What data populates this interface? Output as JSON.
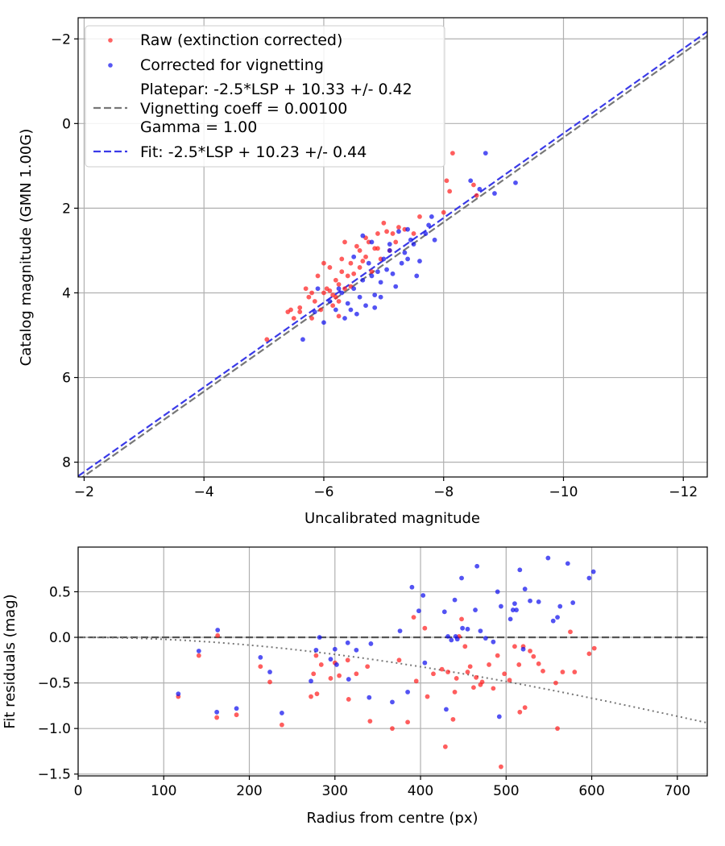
{
  "colors": {
    "raw": "#ff2020",
    "corrected": "#1010ee",
    "platepar": "#555555",
    "fit": "#2828e6"
  },
  "chart_data": [
    {
      "type": "scatter",
      "xlabel": "Uncalibrated magnitude",
      "ylabel": "Catalog magnitude (GMN 1.00G)",
      "xlim": [
        -1.9,
        -12.4
      ],
      "ylim": [
        8.35,
        -2.5
      ],
      "xticks": [
        -2,
        -4,
        -6,
        -8,
        -10,
        -12
      ],
      "xtick_labels": [
        "−2",
        "−4",
        "−6",
        "−8",
        "−10",
        "−12"
      ],
      "yticks": [
        -2,
        0,
        2,
        4,
        6,
        8
      ],
      "ytick_labels": [
        "−2",
        "0",
        "2",
        "4",
        "6",
        "8"
      ],
      "grid": true,
      "legend": {
        "position": "top-left",
        "raw": "Raw (extinction corrected)",
        "corrected": "Corrected for vignetting",
        "platepar_lines": [
          "Platepar: -2.5*LSP + 10.33 +/- 0.42",
          "Vignetting coeff = 0.00100",
          "Gamma = 1.00"
        ],
        "fit": "Fit: -2.5*LSP + 10.23 +/- 0.44"
      },
      "lines": [
        {
          "name": "platepar",
          "offset": 10.33,
          "color": "#777777"
        },
        {
          "name": "fit",
          "offset": 10.23,
          "color": "#3a3ae8"
        }
      ],
      "series": [
        {
          "name": "Raw (extinction corrected)",
          "color": "#ff2020",
          "points": [
            [
              -5.05,
              5.1
            ],
            [
              -5.4,
              4.45
            ],
            [
              -5.45,
              4.4
            ],
            [
              -5.5,
              4.6
            ],
            [
              -5.6,
              4.35
            ],
            [
              -5.6,
              4.45
            ],
            [
              -5.7,
              3.9
            ],
            [
              -5.75,
              4.1
            ],
            [
              -5.8,
              4.0
            ],
            [
              -5.85,
              4.2
            ],
            [
              -5.9,
              3.6
            ],
            [
              -5.95,
              4.4
            ],
            [
              -6.0,
              3.3
            ],
            [
              -6.0,
              4.0
            ],
            [
              -6.05,
              3.9
            ],
            [
              -6.1,
              3.95
            ],
            [
              -6.1,
              3.4
            ],
            [
              -6.15,
              4.05
            ],
            [
              -6.2,
              3.7
            ],
            [
              -6.2,
              4.1
            ],
            [
              -6.25,
              3.8
            ],
            [
              -6.25,
              4.2
            ],
            [
              -6.3,
              3.2
            ],
            [
              -6.3,
              3.5
            ],
            [
              -6.35,
              3.9
            ],
            [
              -6.35,
              2.8
            ],
            [
              -6.4,
              3.6
            ],
            [
              -6.45,
              3.85
            ],
            [
              -6.45,
              3.3
            ],
            [
              -6.5,
              3.55
            ],
            [
              -6.55,
              2.9
            ],
            [
              -6.6,
              3.4
            ],
            [
              -6.6,
              3.0
            ],
            [
              -6.65,
              3.25
            ],
            [
              -6.7,
              2.7
            ],
            [
              -6.7,
              3.15
            ],
            [
              -6.75,
              2.8
            ],
            [
              -6.8,
              3.5
            ],
            [
              -6.85,
              2.95
            ],
            [
              -6.9,
              2.6
            ],
            [
              -6.95,
              3.2
            ],
            [
              -7.0,
              2.35
            ],
            [
              -7.05,
              2.55
            ],
            [
              -7.1,
              3.0
            ],
            [
              -7.15,
              2.6
            ],
            [
              -7.2,
              2.8
            ],
            [
              -7.25,
              2.45
            ],
            [
              -7.35,
              2.5
            ],
            [
              -7.5,
              2.6
            ],
            [
              -7.6,
              2.2
            ],
            [
              -8.0,
              2.1
            ],
            [
              -8.15,
              0.7
            ],
            [
              -8.05,
              1.35
            ],
            [
              -8.1,
              1.6
            ],
            [
              -8.5,
              1.45
            ],
            [
              -8.55,
              1.7
            ],
            [
              -6.15,
              4.3
            ],
            [
              -6.25,
              4.55
            ],
            [
              -5.8,
              4.6
            ],
            [
              -6.9,
              2.95
            ]
          ]
        },
        {
          "name": "Corrected for vignetting",
          "color": "#1010ee",
          "points": [
            [
              -5.65,
              5.1
            ],
            [
              -5.85,
              4.45
            ],
            [
              -5.9,
              3.9
            ],
            [
              -6.0,
              4.7
            ],
            [
              -6.1,
              4.2
            ],
            [
              -6.2,
              4.4
            ],
            [
              -6.25,
              3.9
            ],
            [
              -6.3,
              4.0
            ],
            [
              -6.35,
              4.6
            ],
            [
              -6.4,
              4.25
            ],
            [
              -6.45,
              4.4
            ],
            [
              -6.5,
              3.9
            ],
            [
              -6.55,
              4.5
            ],
            [
              -6.6,
              4.1
            ],
            [
              -6.65,
              3.7
            ],
            [
              -6.7,
              4.3
            ],
            [
              -6.75,
              3.3
            ],
            [
              -6.8,
              3.6
            ],
            [
              -6.85,
              4.05
            ],
            [
              -6.9,
              3.5
            ],
            [
              -6.95,
              4.1
            ],
            [
              -7.0,
              3.2
            ],
            [
              -7.05,
              3.45
            ],
            [
              -7.1,
              3.0
            ],
            [
              -7.15,
              3.55
            ],
            [
              -7.2,
              3.85
            ],
            [
              -7.25,
              2.55
            ],
            [
              -7.3,
              3.3
            ],
            [
              -7.35,
              3.05
            ],
            [
              -7.4,
              3.2
            ],
            [
              -7.45,
              2.75
            ],
            [
              -7.5,
              2.85
            ],
            [
              -7.55,
              3.6
            ],
            [
              -7.6,
              3.25
            ],
            [
              -7.7,
              2.6
            ],
            [
              -7.75,
              2.4
            ],
            [
              -7.8,
              2.2
            ],
            [
              -7.85,
              2.75
            ],
            [
              -8.45,
              1.35
            ],
            [
              -8.6,
              1.55
            ],
            [
              -8.7,
              0.7
            ],
            [
              -8.85,
              1.65
            ],
            [
              -9.2,
              1.4
            ],
            [
              -6.65,
              2.65
            ],
            [
              -6.8,
              2.8
            ],
            [
              -6.95,
              3.75
            ],
            [
              -7.1,
              2.85
            ],
            [
              -6.5,
              3.15
            ],
            [
              -6.85,
              4.35
            ],
            [
              -7.4,
              2.5
            ]
          ]
        }
      ]
    },
    {
      "type": "scatter",
      "xlabel": "Radius from centre (px)",
      "ylabel": "Fit residuals (mag)",
      "xlim": [
        0,
        735
      ],
      "ylim": [
        -1.52,
        0.99
      ],
      "xticks": [
        0,
        100,
        200,
        300,
        400,
        500,
        600,
        700
      ],
      "xtick_labels": [
        "0",
        "100",
        "200",
        "300",
        "400",
        "500",
        "600",
        "700"
      ],
      "yticks": [
        -1.5,
        -1.0,
        -0.5,
        0.0,
        0.5
      ],
      "ytick_labels": [
        "−1.5",
        "−1.0",
        "−0.5",
        "0.0",
        "0.5"
      ],
      "grid": true,
      "lines": [
        {
          "name": "zero",
          "style": "dashed",
          "color": "#555555"
        },
        {
          "name": "vignetting",
          "style": "dotted",
          "coeff": 0.001,
          "color": "#777777"
        }
      ],
      "series": [
        {
          "name": "Raw (extinction corrected)",
          "color": "#ff2020",
          "points": [
            [
              117,
              -0.65
            ],
            [
              141,
              -0.2
            ],
            [
              162,
              -0.88
            ],
            [
              163,
              0.02
            ],
            [
              185,
              -0.85
            ],
            [
              213,
              -0.32
            ],
            [
              224,
              -0.49
            ],
            [
              238,
              -0.96
            ],
            [
              272,
              -0.65
            ],
            [
              275,
              -0.4
            ],
            [
              278,
              -0.2
            ],
            [
              279,
              -0.62
            ],
            [
              284,
              -0.3
            ],
            [
              295,
              -0.45
            ],
            [
              300,
              -0.28
            ],
            [
              305,
              -0.42
            ],
            [
              315,
              -0.25
            ],
            [
              316,
              -0.68
            ],
            [
              325,
              -0.4
            ],
            [
              338,
              -0.32
            ],
            [
              341,
              -0.92
            ],
            [
              367,
              -1.0
            ],
            [
              375,
              -0.25
            ],
            [
              385,
              -0.93
            ],
            [
              392,
              0.22
            ],
            [
              395,
              -0.48
            ],
            [
              405,
              0.1
            ],
            [
              408,
              -0.65
            ],
            [
              415,
              -0.4
            ],
            [
              425,
              -0.35
            ],
            [
              429,
              -1.2
            ],
            [
              432,
              -0.38
            ],
            [
              438,
              -0.9
            ],
            [
              440,
              -0.6
            ],
            [
              442,
              -0.45
            ],
            [
              445,
              0.01
            ],
            [
              448,
              0.2
            ],
            [
              452,
              -0.1
            ],
            [
              455,
              -0.38
            ],
            [
              458,
              -0.32
            ],
            [
              462,
              -0.55
            ],
            [
              465,
              -0.44
            ],
            [
              470,
              -0.52
            ],
            [
              472,
              -0.49
            ],
            [
              480,
              -0.3
            ],
            [
              485,
              -0.56
            ],
            [
              490,
              -0.2
            ],
            [
              494,
              -1.42
            ],
            [
              498,
              -0.4
            ],
            [
              504,
              -0.47
            ],
            [
              510,
              -0.1
            ],
            [
              515,
              -0.3
            ],
            [
              516,
              -0.82
            ],
            [
              520,
              -0.1
            ],
            [
              522,
              -0.77
            ],
            [
              528,
              -0.15
            ],
            [
              532,
              -0.21
            ],
            [
              538,
              -0.29
            ],
            [
              543,
              -0.37
            ],
            [
              558,
              -0.5
            ],
            [
              560,
              -1.0
            ],
            [
              566,
              -0.38
            ],
            [
              575,
              0.06
            ],
            [
              580,
              -0.38
            ],
            [
              597,
              -0.18
            ],
            [
              603,
              -0.12
            ]
          ]
        },
        {
          "name": "Corrected for vignetting",
          "color": "#1010ee",
          "points": [
            [
              117,
              -0.62
            ],
            [
              141,
              -0.15
            ],
            [
              162,
              -0.82
            ],
            [
              163,
              0.08
            ],
            [
              185,
              -0.78
            ],
            [
              213,
              -0.22
            ],
            [
              224,
              -0.38
            ],
            [
              238,
              -0.83
            ],
            [
              272,
              -0.48
            ],
            [
              278,
              -0.14
            ],
            [
              282,
              0.0
            ],
            [
              295,
              -0.24
            ],
            [
              300,
              -0.13
            ],
            [
              302,
              -0.3
            ],
            [
              315,
              -0.06
            ],
            [
              316,
              -0.46
            ],
            [
              325,
              -0.14
            ],
            [
              340,
              -0.66
            ],
            [
              342,
              -0.07
            ],
            [
              367,
              -0.71
            ],
            [
              376,
              0.07
            ],
            [
              385,
              -0.6
            ],
            [
              390,
              0.55
            ],
            [
              398,
              0.29
            ],
            [
              403,
              0.46
            ],
            [
              405,
              -0.28
            ],
            [
              428,
              0.28
            ],
            [
              430,
              -0.79
            ],
            [
              432,
              0.01
            ],
            [
              436,
              -0.03
            ],
            [
              440,
              0.41
            ],
            [
              441,
              0.01
            ],
            [
              443,
              -0.02
            ],
            [
              448,
              0.65
            ],
            [
              449,
              0.1
            ],
            [
              455,
              0.09
            ],
            [
              464,
              0.3
            ],
            [
              466,
              0.78
            ],
            [
              470,
              0.07
            ],
            [
              476,
              -0.01
            ],
            [
              485,
              -0.05
            ],
            [
              490,
              0.5
            ],
            [
              492,
              -0.87
            ],
            [
              494,
              0.34
            ],
            [
              505,
              0.2
            ],
            [
              508,
              0.3
            ],
            [
              510,
              0.37
            ],
            [
              512,
              0.3
            ],
            [
              516,
              0.74
            ],
            [
              520,
              -0.13
            ],
            [
              522,
              0.53
            ],
            [
              528,
              0.4
            ],
            [
              538,
              0.39
            ],
            [
              549,
              0.87
            ],
            [
              555,
              0.18
            ],
            [
              560,
              0.22
            ],
            [
              563,
              0.34
            ],
            [
              572,
              0.81
            ],
            [
              578,
              0.38
            ],
            [
              597,
              0.65
            ],
            [
              602,
              0.72
            ]
          ]
        }
      ]
    }
  ]
}
